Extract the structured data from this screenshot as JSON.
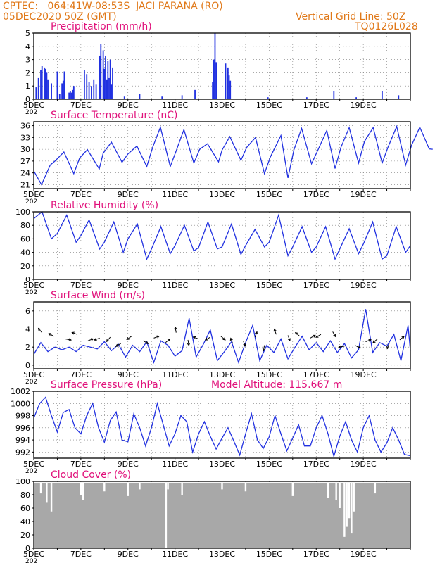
{
  "header": {
    "line1": "CPTEC:   064:41W-08:53S  JACI PARANA (RO)",
    "line2": "05DEC2020 50Z (GMT)",
    "right1": "Vertical Grid Line: 50Z",
    "right2": "TQ0126L028"
  },
  "colors": {
    "header": "#e07818",
    "title": "#e0107a",
    "line": "#2030e0",
    "bar": "#2030e0",
    "cloud": "#a8a8a8"
  },
  "x_axis": {
    "ticks": [
      "5DEC",
      "7DEC",
      "9DEC",
      "11DEC",
      "13DEC",
      "15DEC",
      "17DEC",
      "19DEC"
    ],
    "year_fragment": "202"
  },
  "chart_data": [
    {
      "type": "bar",
      "title": "Precipitation (mm/h)",
      "ylim": [
        0,
        5
      ],
      "yticks": [
        "0",
        "1",
        "2",
        "3",
        "4",
        "5"
      ],
      "x_days": [
        0.1,
        0.2,
        0.3,
        0.35,
        0.45,
        0.5,
        0.55,
        0.6,
        0.75,
        1.0,
        1.1,
        1.2,
        1.25,
        1.3,
        1.5,
        1.55,
        1.6,
        1.65,
        1.7,
        2.15,
        2.25,
        2.35,
        2.45,
        2.55,
        2.65,
        2.8,
        2.85,
        2.95,
        3.0,
        3.05,
        3.1,
        3.15,
        3.2,
        3.25,
        3.3,
        3.35,
        3.85,
        4.5,
        5.45,
        6.3,
        6.85,
        7.6,
        7.65,
        7.7,
        7.75,
        8.15,
        8.25,
        8.3,
        8.35,
        9.95,
        11.6,
        12.75,
        13.7,
        14.8,
        15.5
      ],
      "values": [
        0.9,
        1.6,
        2.2,
        2.5,
        2.4,
        2.3,
        2.0,
        1.5,
        1.2,
        2.1,
        0.4,
        1.2,
        1.4,
        2.1,
        0.5,
        0.6,
        0.5,
        0.7,
        1.0,
        2.2,
        1.9,
        1.3,
        1.0,
        1.5,
        1.1,
        3.3,
        4.2,
        3.7,
        2.3,
        3.3,
        1.5,
        2.9,
        1.6,
        3.0,
        1.1,
        2.4,
        0.2,
        0.4,
        0.2,
        0.3,
        0.7,
        1.3,
        3.0,
        5.0,
        2.8,
        2.7,
        2.4,
        1.8,
        1.4,
        0.15,
        0.15,
        0.6,
        0.15,
        0.6,
        0.3
      ]
    },
    {
      "type": "line",
      "title": "Surface Temperature (nC)",
      "ylim": [
        20,
        37
      ],
      "yticks": [
        "21",
        "24",
        "27",
        "30",
        "33",
        "36"
      ],
      "x_days": [
        0.0,
        0.33,
        0.7,
        0.9,
        1.28,
        1.7,
        1.95,
        2.28,
        2.78,
        2.95,
        3.3,
        3.75,
        4.0,
        4.38,
        4.8,
        5.05,
        5.38,
        5.8,
        6.05,
        6.38,
        6.8,
        7.05,
        7.38,
        7.85,
        8.0,
        8.33,
        8.8,
        9.05,
        9.42,
        9.8,
        10.05,
        10.5,
        10.8,
        11.05,
        11.38,
        11.8,
        12.05,
        12.45,
        12.8,
        13.05,
        13.4,
        13.8,
        14.05,
        14.42,
        14.8,
        15.05,
        15.42,
        15.8,
        16.05,
        16.4,
        16.8,
        16.95
      ],
      "values": [
        24.5,
        21.0,
        26.0,
        27.0,
        29.3,
        23.8,
        27.8,
        29.9,
        25.0,
        29.0,
        31.8,
        26.7,
        28.8,
        30.8,
        25.6,
        30.5,
        35.6,
        25.6,
        29.6,
        35.0,
        26.5,
        30.0,
        31.4,
        26.8,
        29.8,
        33.2,
        27.2,
        30.5,
        33.0,
        23.8,
        28.0,
        33.5,
        22.7,
        29.8,
        35.3,
        26.3,
        29.5,
        34.8,
        25.1,
        30.5,
        35.5,
        26.5,
        32.0,
        35.5,
        26.5,
        30.5,
        35.8,
        26.0,
        31.0,
        35.6,
        30.1,
        30.0
      ]
    },
    {
      "type": "line",
      "title": "Relative Humidity (%)",
      "ylim": [
        0,
        100
      ],
      "yticks": [
        "0",
        "20",
        "40",
        "60",
        "80",
        "100"
      ],
      "x_days": [
        0.0,
        0.35,
        0.75,
        1.0,
        1.4,
        1.8,
        2.0,
        2.35,
        2.8,
        3.0,
        3.4,
        3.8,
        4.0,
        4.4,
        4.8,
        5.0,
        5.4,
        5.8,
        6.0,
        6.4,
        6.8,
        7.0,
        7.4,
        7.8,
        8.0,
        8.4,
        8.8,
        9.0,
        9.4,
        9.8,
        10.0,
        10.4,
        10.8,
        11.0,
        11.4,
        11.8,
        12.0,
        12.4,
        12.8,
        13.0,
        13.4,
        13.8,
        14.0,
        14.4,
        14.8,
        15.0,
        15.4,
        15.8,
        16.0
      ],
      "values": [
        90,
        100,
        60,
        68,
        95,
        55,
        65,
        88,
        45,
        55,
        85,
        40,
        60,
        82,
        30,
        45,
        78,
        38,
        50,
        80,
        42,
        47,
        85,
        45,
        48,
        82,
        37,
        50,
        74,
        48,
        55,
        95,
        35,
        48,
        78,
        40,
        48,
        78,
        30,
        45,
        75,
        38,
        52,
        85,
        30,
        35,
        78,
        40,
        50
      ]
    },
    {
      "type": "line",
      "title": "Surface Wind (m/s)",
      "ylim": [
        -0.4,
        7.0
      ],
      "yticks": [
        "0",
        "2",
        "4",
        "6"
      ],
      "x_days": [
        0.0,
        0.3,
        0.6,
        0.9,
        1.2,
        1.5,
        1.8,
        2.1,
        2.4,
        2.7,
        3.0,
        3.3,
        3.6,
        3.9,
        4.2,
        4.5,
        4.8,
        5.1,
        5.4,
        5.7,
        6.0,
        6.3,
        6.6,
        6.9,
        7.2,
        7.5,
        7.8,
        8.1,
        8.4,
        8.7,
        9.0,
        9.3,
        9.6,
        9.9,
        10.2,
        10.5,
        10.8,
        11.1,
        11.4,
        11.7,
        12.0,
        12.3,
        12.6,
        12.9,
        13.2,
        13.5,
        13.8,
        14.1,
        14.4,
        14.7,
        15.0,
        15.3,
        15.6,
        15.9,
        16.0
      ],
      "values": [
        1.2,
        2.5,
        1.5,
        2.0,
        1.7,
        2.0,
        1.5,
        2.2,
        2.0,
        1.8,
        2.6,
        1.6,
        2.3,
        0.9,
        2.2,
        1.5,
        2.6,
        0.3,
        2.7,
        2.2,
        1.0,
        1.6,
        5.2,
        0.9,
        2.3,
        3.9,
        0.5,
        1.5,
        2.6,
        0.3,
        2.5,
        4.4,
        0.5,
        2.2,
        1.4,
        2.9,
        0.7,
        2.0,
        3.2,
        1.7,
        2.5,
        1.5,
        2.7,
        1.4,
        2.4,
        0.8,
        1.7,
        6.2,
        1.4,
        2.5,
        2.1,
        3.4,
        0.5,
        4.4,
        1.6
      ],
      "arrows_x_days": [
        0.35,
        0.85,
        1.35,
        1.85,
        2.3,
        2.8,
        3.25,
        3.7,
        4.15,
        4.65,
        5.1,
        5.6,
        6.05,
        6.55,
        7.0,
        7.5,
        7.95,
        8.45,
        8.9,
        9.4,
        9.8,
        10.3,
        10.8,
        11.3,
        11.75,
        12.2,
        12.7,
        13.2,
        13.65,
        14.1,
        14.6,
        15.1,
        15.55
      ],
      "arrows_y": [
        3.6,
        3.2,
        2.9,
        3.4,
        2.7,
        3.0,
        3.1,
        2.4,
        3.2,
        2.7,
        3.0,
        2.5,
        3.6,
        2.8,
        2.9,
        3.1,
        3.2,
        2.4,
        2.7,
        3.1,
        2.2,
        3.4,
        3.3,
        3.2,
        3.0,
        3.4,
        3.7,
        2.1,
        2.2,
        2.6,
        2.9,
        2.4,
        2.8
      ],
      "arrows_angle_deg": [
        130,
        150,
        -10,
        160,
        20,
        200,
        230,
        210,
        215,
        -30,
        20,
        40,
        100,
        280,
        160,
        210,
        -40,
        110,
        290,
        70,
        260,
        110,
        -70,
        140,
        30,
        210,
        300,
        190,
        -30,
        20,
        220,
        250,
        40
      ]
    },
    {
      "type": "line",
      "title": "Surface Pressure (hPa)",
      "ylim": [
        991,
        1002
      ],
      "yticks": [
        "992",
        "994",
        "996",
        "998",
        "1000",
        "1002"
      ],
      "x_days": [
        0.0,
        0.25,
        0.5,
        0.75,
        1.0,
        1.25,
        1.5,
        1.75,
        2.0,
        2.25,
        2.5,
        2.75,
        3.0,
        3.25,
        3.5,
        3.75,
        4.0,
        4.25,
        4.5,
        4.75,
        5.0,
        5.25,
        5.5,
        5.75,
        6.0,
        6.25,
        6.5,
        6.75,
        7.0,
        7.25,
        7.5,
        7.75,
        8.0,
        8.25,
        8.5,
        8.75,
        9.0,
        9.25,
        9.5,
        9.75,
        10.0,
        10.25,
        10.5,
        10.75,
        11.0,
        11.25,
        11.5,
        11.75,
        12.0,
        12.25,
        12.5,
        12.75,
        13.0,
        13.25,
        13.5,
        13.75,
        14.0,
        14.25,
        14.5,
        14.75,
        15.0,
        15.25,
        15.5,
        15.75,
        16.0
      ],
      "values": [
        997.6,
        1000.0,
        1001.0,
        998.0,
        995.3,
        998.5,
        999.0,
        996.0,
        995.0,
        998.0,
        1000.0,
        996.0,
        993.6,
        997.2,
        998.6,
        994.0,
        993.7,
        998.3,
        996.0,
        993.0,
        996.0,
        1000.0,
        996.5,
        993.0,
        995.0,
        998.0,
        997.0,
        992.0,
        995.0,
        997.0,
        994.6,
        992.5,
        994.3,
        996.0,
        993.8,
        991.5,
        995.0,
        998.3,
        994.0,
        992.6,
        994.5,
        998.0,
        995.0,
        992.2,
        994.3,
        996.5,
        993.0,
        993.0,
        996.0,
        998.0,
        995.0,
        991.3,
        994.6,
        997.0,
        994.0,
        992.0,
        996.0,
        998.0,
        994.0,
        992.0,
        993.5,
        996.0,
        994.0,
        991.6,
        991.4
      ]
    },
    {
      "type": "bar",
      "title": "Cloud Cover (%)",
      "ylim": [
        0,
        100
      ],
      "yticks": [
        "0",
        "20",
        "40",
        "60",
        "80",
        "100"
      ],
      "x_days": [
        0.3,
        0.55,
        0.75,
        2.0,
        2.1,
        3.0,
        4.0,
        4.5,
        5.62,
        5.7,
        6.3,
        8.0,
        9.0,
        11.0,
        12.5,
        12.85,
        13.0,
        13.2,
        13.3,
        13.4,
        13.5,
        13.6,
        14.5
      ],
      "values": [
        82,
        68,
        55,
        80,
        72,
        85,
        78,
        88,
        0,
        88,
        80,
        88,
        85,
        78,
        75,
        72,
        60,
        17,
        32,
        45,
        22,
        55,
        82
      ],
      "baseline": 98
    }
  ],
  "panel_extra": {
    "model_altitude": "Model Altitude: 115.667 m"
  }
}
